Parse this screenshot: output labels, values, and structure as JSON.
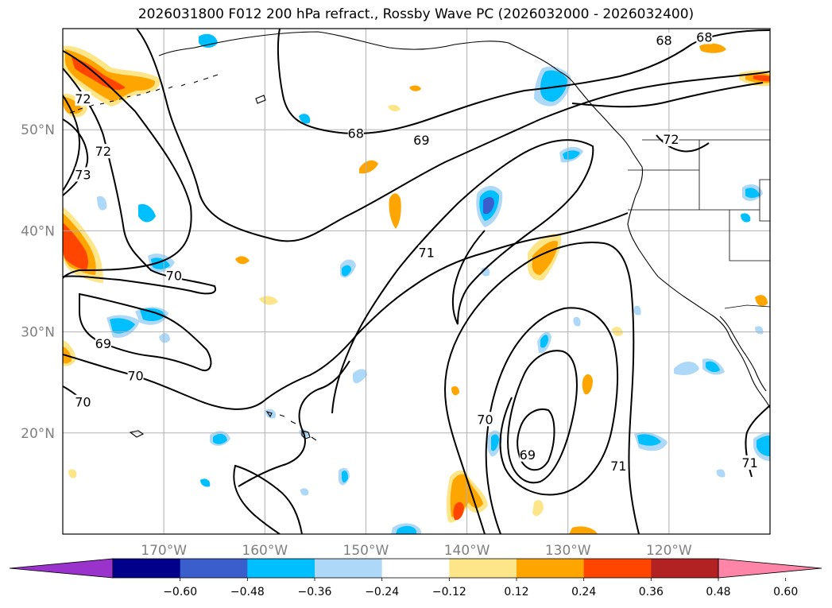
{
  "title": "2026031800 F012 200 hPa refract., Rossby Wave PC (2026032000 - 2026032400)",
  "map": {
    "lon_range": [
      -180,
      -110
    ],
    "lat_range": [
      10,
      60
    ],
    "lon_ticks": [
      {
        "lon": -170,
        "label": "170°W"
      },
      {
        "lon": -160,
        "label": "160°W"
      },
      {
        "lon": -150,
        "label": "150°W"
      },
      {
        "lon": -140,
        "label": "140°W"
      },
      {
        "lon": -130,
        "label": "130°W"
      },
      {
        "lon": -120,
        "label": "120°W"
      }
    ],
    "lat_ticks": [
      {
        "lat": 50,
        "label": "50°N"
      },
      {
        "lat": 40,
        "label": "40°N"
      },
      {
        "lat": 30,
        "label": "30°N"
      },
      {
        "lat": 20,
        "label": "20°N"
      }
    ],
    "contour_labels": [
      {
        "text": "68",
        "lon": -116.5,
        "lat": 59.1
      },
      {
        "text": "68",
        "lon": -120.5,
        "lat": 58.8
      },
      {
        "text": "68",
        "lon": -151.0,
        "lat": 49.6
      },
      {
        "text": "69",
        "lon": -144.5,
        "lat": 48.9
      },
      {
        "text": "72",
        "lon": -178.0,
        "lat": 53.0
      },
      {
        "text": "72",
        "lon": -176.0,
        "lat": 47.8
      },
      {
        "text": "73",
        "lon": -178.0,
        "lat": 45.5
      },
      {
        "text": "72",
        "lon": -119.8,
        "lat": 49.0
      },
      {
        "text": "71",
        "lon": -144.0,
        "lat": 37.8
      },
      {
        "text": "70",
        "lon": -169.0,
        "lat": 35.5
      },
      {
        "text": "69",
        "lon": -176.0,
        "lat": 28.8
      },
      {
        "text": "70",
        "lon": -172.8,
        "lat": 25.6
      },
      {
        "text": "70",
        "lon": -178.0,
        "lat": 23.0
      },
      {
        "text": "70",
        "lon": -138.2,
        "lat": 21.3
      },
      {
        "text": "69",
        "lon": -134.0,
        "lat": 17.8
      },
      {
        "text": "71",
        "lon": -125.0,
        "lat": 16.7
      },
      {
        "text": "71",
        "lon": -112.0,
        "lat": 17.0
      }
    ]
  },
  "colorbar": {
    "colors": [
      "#9933cc",
      "#00008b",
      "#3a5fcd",
      "#00bfff",
      "#add8f7",
      "#ffffff",
      "#fde68a",
      "#ffa500",
      "#ff4500",
      "#b22222",
      "#ff85a8"
    ],
    "tick_labels": [
      "-0.60",
      "-0.48",
      "-0.36",
      "-0.24",
      "-0.12",
      "0.12",
      "0.24",
      "0.36",
      "0.48",
      "0.60"
    ]
  }
}
